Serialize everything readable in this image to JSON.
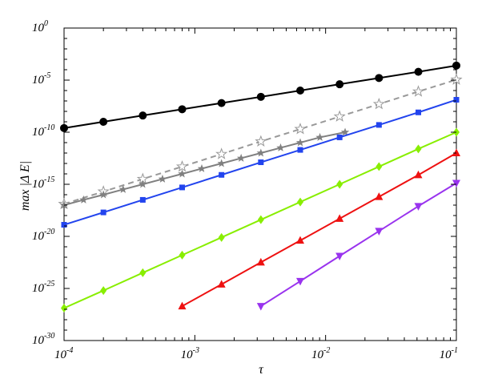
{
  "chart_data": {
    "type": "line",
    "xscale": "log",
    "yscale": "log",
    "xlim": [
      0.0001,
      0.1
    ],
    "ylim": [
      1e-30,
      1
    ],
    "xlabel": "τ",
    "ylabel": "max |Δ E|",
    "xticks": [
      {
        "base": "10",
        "exp": "-4",
        "value": 0.0001
      },
      {
        "base": "10",
        "exp": "-3",
        "value": 0.001
      },
      {
        "base": "10",
        "exp": "-2",
        "value": 0.01
      },
      {
        "base": "10",
        "exp": "-1",
        "value": 0.1
      }
    ],
    "yticks": [
      {
        "base": "10",
        "exp": "0",
        "value": 1
      },
      {
        "base": "10",
        "exp": "-5",
        "value": 1e-05
      },
      {
        "base": "10",
        "exp": "-10",
        "value": 1e-10
      },
      {
        "base": "10",
        "exp": "-15",
        "value": 1e-15
      },
      {
        "base": "10",
        "exp": "-20",
        "value": 1e-20
      },
      {
        "base": "10",
        "exp": "-25",
        "value": 1e-25
      },
      {
        "base": "10",
        "exp": "-30",
        "value": 1e-30
      }
    ],
    "grid": false,
    "legend": "none",
    "series": [
      {
        "color": "#000000",
        "marker": "circle",
        "line": "solid",
        "x": [
          0.0001,
          0.0002,
          0.0004,
          0.0008,
          0.0016,
          0.0032,
          0.0064,
          0.0128,
          0.0256,
          0.0512,
          0.1
        ],
        "y": [
          2.5e-10,
          1e-09,
          4e-09,
          1.6e-08,
          6.3e-08,
          2.5e-07,
          1e-06,
          4e-06,
          1.6e-05,
          6.3e-05,
          0.00025
        ]
      },
      {
        "color": "#999999",
        "marker": "star-open",
        "line": "dashed",
        "x": [
          0.0001,
          0.0002,
          0.0004,
          0.0008,
          0.0016,
          0.0032,
          0.0064,
          0.0128,
          0.0256,
          0.0512,
          0.1
        ],
        "y": [
          1.3e-17,
          2e-16,
          3.2e-15,
          5e-14,
          8e-13,
          1.3e-11,
          2e-10,
          3.2e-09,
          5e-08,
          8e-07,
          1.1e-05
        ]
      },
      {
        "color": "#808080",
        "marker": "star",
        "line": "solid",
        "x": [
          0.0001,
          0.000141,
          0.0002,
          0.000283,
          0.0004,
          0.000566,
          0.0008,
          0.00113,
          0.0016,
          0.00226,
          0.0032,
          0.00453,
          0.0064,
          0.00905,
          0.0141
        ],
        "y": [
          1e-17,
          3.2e-17,
          1e-16,
          3.2e-16,
          1e-15,
          3.2e-15,
          1e-14,
          3.2e-14,
          1e-13,
          3.2e-13,
          1e-12,
          3.2e-12,
          1e-11,
          3.2e-11,
          1e-10
        ]
      },
      {
        "color": "#2244ee",
        "marker": "square",
        "line": "solid",
        "x": [
          0.0001,
          0.0002,
          0.0004,
          0.0008,
          0.0016,
          0.0032,
          0.0064,
          0.0128,
          0.0256,
          0.0512,
          0.1
        ],
        "y": [
          1.3e-19,
          2e-18,
          3.2e-17,
          5e-16,
          8e-15,
          1.3e-13,
          2e-12,
          3.2e-11,
          5e-10,
          8e-09,
          1.3e-07
        ]
      },
      {
        "color": "#88ee00",
        "marker": "diamond",
        "line": "solid",
        "x": [
          0.0001,
          0.0002,
          0.0004,
          0.0008,
          0.0016,
          0.0032,
          0.0064,
          0.0128,
          0.0256,
          0.0512,
          0.1
        ],
        "y": [
          1.3e-27,
          6.3e-26,
          3.2e-24,
          1.6e-22,
          7.9e-21,
          4e-19,
          2e-17,
          1e-15,
          5e-14,
          2.5e-12,
          1e-10
        ]
      },
      {
        "color": "#ee1111",
        "marker": "triangle-up",
        "line": "solid",
        "x": [
          0.0008,
          0.0016,
          0.0032,
          0.0064,
          0.0128,
          0.0256,
          0.0512,
          0.1
        ],
        "y": [
          2e-27,
          2.5e-25,
          3.2e-23,
          4e-21,
          5e-19,
          6.3e-17,
          7.9e-15,
          1e-12
        ]
      },
      {
        "color": "#9933ee",
        "marker": "triangle-down",
        "line": "solid",
        "x": [
          0.0032,
          0.0064,
          0.0128,
          0.0256,
          0.0512,
          0.1
        ],
        "y": [
          2e-27,
          5e-25,
          1.3e-22,
          3.2e-20,
          7.9e-18,
          1.3e-15
        ]
      }
    ]
  }
}
